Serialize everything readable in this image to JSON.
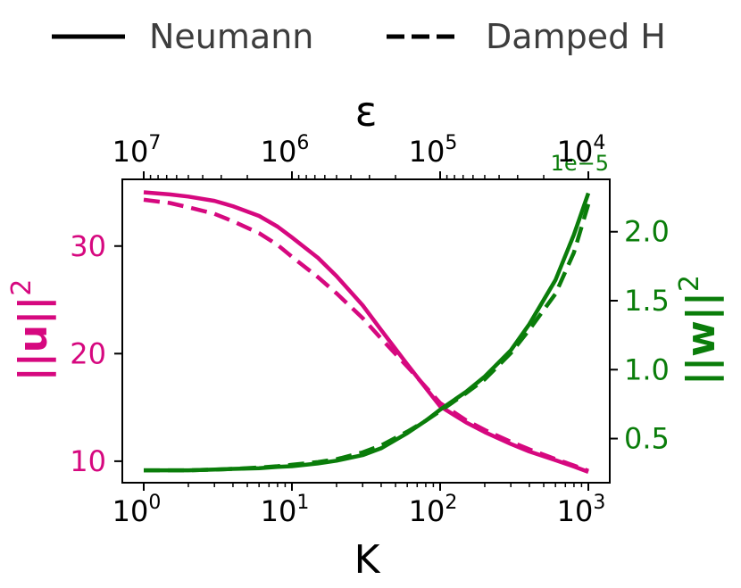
{
  "chart_data": {
    "type": "line",
    "x_scale": "log",
    "xlabel": "K",
    "xlim": [
      1,
      1000
    ],
    "x_ticks": [
      {
        "value": 1,
        "base": "10",
        "exp": "0"
      },
      {
        "value": 10,
        "base": "10",
        "exp": "1"
      },
      {
        "value": 100,
        "base": "10",
        "exp": "2"
      },
      {
        "value": 1000,
        "base": "10",
        "exp": "3"
      }
    ],
    "secondary_x": {
      "label": "ε",
      "scale": "log",
      "ticks": [
        {
          "value": 10000000,
          "base": "10",
          "exp": "7"
        },
        {
          "value": 1000000,
          "base": "10",
          "exp": "6"
        },
        {
          "value": 100000,
          "base": "10",
          "exp": "5"
        },
        {
          "value": 10000,
          "base": "10",
          "exp": "4"
        }
      ]
    },
    "left_y": {
      "label_text": "||u||",
      "label_sup": "2",
      "color": "#d6087f",
      "ylim": [
        8,
        36.2
      ],
      "ticks": [
        "10",
        "20",
        "30"
      ],
      "tick_values": [
        10,
        20,
        30
      ]
    },
    "right_y": {
      "label_text": "||w||",
      "label_sup": "2",
      "color": "#0a7d0a",
      "offset_text": "1e−5",
      "ylim": [
        0.18,
        2.38
      ],
      "ticks": [
        "0.5",
        "1.0",
        "1.5",
        "2.0"
      ],
      "tick_values": [
        0.5,
        1.0,
        1.5,
        2.0
      ]
    },
    "legend": {
      "placement": "top",
      "entries": [
        {
          "name": "Neumann",
          "style": "solid"
        },
        {
          "name": "Damped H",
          "style": "dashed"
        }
      ]
    },
    "x": [
      1,
      1.5,
      2,
      3,
      4,
      6,
      8,
      10,
      15,
      20,
      30,
      40,
      60,
      80,
      100,
      150,
      200,
      300,
      400,
      600,
      800,
      1000
    ],
    "series": [
      {
        "axis": "left",
        "style": "solid",
        "values": [
          35.0,
          34.8,
          34.6,
          34.2,
          33.7,
          32.8,
          31.8,
          30.8,
          28.9,
          27.2,
          24.5,
          22.2,
          19.0,
          16.8,
          15.1,
          13.6,
          12.7,
          11.6,
          10.9,
          10.1,
          9.5,
          9.0
        ]
      },
      {
        "axis": "left",
        "style": "dashed",
        "values": [
          34.3,
          34.0,
          33.6,
          33.0,
          32.3,
          31.2,
          30.1,
          29.0,
          27.1,
          25.6,
          23.3,
          21.4,
          18.8,
          16.9,
          15.4,
          13.8,
          12.9,
          11.8,
          11.1,
          10.2,
          9.6,
          9.1
        ]
      },
      {
        "axis": "right",
        "style": "solid",
        "values": [
          0.27,
          0.27,
          0.27,
          0.275,
          0.28,
          0.285,
          0.295,
          0.3,
          0.32,
          0.34,
          0.38,
          0.43,
          0.54,
          0.63,
          0.71,
          0.84,
          0.95,
          1.14,
          1.33,
          1.65,
          1.98,
          2.28
        ]
      },
      {
        "axis": "right",
        "style": "dashed",
        "values": [
          0.27,
          0.27,
          0.27,
          0.275,
          0.28,
          0.29,
          0.3,
          0.31,
          0.33,
          0.35,
          0.4,
          0.45,
          0.55,
          0.63,
          0.7,
          0.83,
          0.93,
          1.12,
          1.29,
          1.55,
          1.85,
          2.2
        ]
      }
    ]
  }
}
